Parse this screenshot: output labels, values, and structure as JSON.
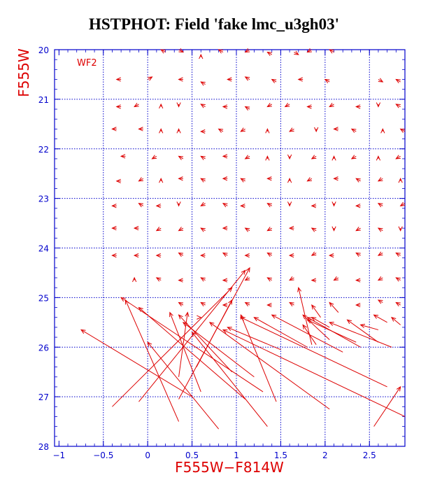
{
  "chart_data": {
    "type": "vector-field",
    "title": "HSTPHOT: Field 'fake lmc_u3gh03'",
    "xlabel": "F555W−F814W",
    "ylabel": "F555W",
    "annotation": "WF2",
    "xlim": [
      -1.05,
      2.9
    ],
    "ylim": [
      28,
      20
    ],
    "x_ticks": [
      -1,
      -0.5,
      0,
      0.5,
      1,
      1.5,
      2,
      2.5
    ],
    "x_tick_labels": [
      "−1",
      "−0.5",
      "0",
      "0.5",
      "1",
      "1.5",
      "2",
      "2.5"
    ],
    "y_ticks": [
      20,
      21,
      22,
      23,
      24,
      25,
      26,
      27,
      28
    ],
    "y_tick_labels": [
      "20",
      "21",
      "22",
      "23",
      "24",
      "25",
      "26",
      "27",
      "28"
    ],
    "grid_x": [
      -0.5,
      0,
      0.5,
      1,
      1.5,
      2,
      2.5
    ],
    "grid_y": [
      21,
      22,
      23,
      24,
      25,
      26,
      27
    ],
    "grid": true,
    "colors": {
      "axes": "#0000cc",
      "grid": "#0000cc",
      "data": "#dd0000",
      "labels": "#dd0000",
      "title": "#000000"
    },
    "arrows": [
      {
        "x0": 0.2,
        "y0": 20.05,
        "x1": 0.15,
        "y1": 20.0
      },
      {
        "x0": 0.35,
        "y0": 20.0,
        "x1": 0.4,
        "y1": 20.05
      },
      {
        "x0": 0.6,
        "y0": 20.15,
        "x1": 0.6,
        "y1": 20.1
      },
      {
        "x0": 0.85,
        "y0": 20.05,
        "x1": 0.8,
        "y1": 20.0
      },
      {
        "x0": 1.15,
        "y0": 20.0,
        "x1": 1.1,
        "y1": 20.05
      },
      {
        "x0": 1.4,
        "y0": 20.1,
        "x1": 1.35,
        "y1": 20.05
      },
      {
        "x0": 1.65,
        "y0": 20.05,
        "x1": 1.7,
        "y1": 20.1
      },
      {
        "x0": 1.85,
        "y0": 20.0,
        "x1": 1.8,
        "y1": 20.05
      },
      {
        "x0": 2.1,
        "y0": 20.05,
        "x1": 2.05,
        "y1": 20.0
      },
      {
        "x0": -0.3,
        "y0": 20.6,
        "x1": -0.35,
        "y1": 20.6
      },
      {
        "x0": 0.0,
        "y0": 20.6,
        "x1": 0.05,
        "y1": 20.55
      },
      {
        "x0": 0.4,
        "y0": 20.6,
        "x1": 0.35,
        "y1": 20.6
      },
      {
        "x0": 0.65,
        "y0": 20.7,
        "x1": 0.6,
        "y1": 20.65
      },
      {
        "x0": 0.95,
        "y0": 20.6,
        "x1": 0.9,
        "y1": 20.6
      },
      {
        "x0": 1.15,
        "y0": 20.6,
        "x1": 1.1,
        "y1": 20.55
      },
      {
        "x0": 1.45,
        "y0": 20.65,
        "x1": 1.4,
        "y1": 20.6
      },
      {
        "x0": 1.75,
        "y0": 20.6,
        "x1": 1.7,
        "y1": 20.6
      },
      {
        "x0": 2.05,
        "y0": 20.65,
        "x1": 2.0,
        "y1": 20.6
      },
      {
        "x0": 2.6,
        "y0": 20.6,
        "x1": 2.65,
        "y1": 20.65
      },
      {
        "x0": 2.85,
        "y0": 20.65,
        "x1": 2.8,
        "y1": 20.6
      },
      {
        "x0": -0.3,
        "y0": 21.15,
        "x1": -0.35,
        "y1": 21.15
      },
      {
        "x0": -0.1,
        "y0": 21.1,
        "x1": -0.15,
        "y1": 21.15
      },
      {
        "x0": 0.15,
        "y0": 21.15,
        "x1": 0.15,
        "y1": 21.1
      },
      {
        "x0": 0.35,
        "y0": 21.1,
        "x1": 0.35,
        "y1": 21.15
      },
      {
        "x0": 0.65,
        "y0": 21.15,
        "x1": 0.6,
        "y1": 21.1
      },
      {
        "x0": 0.9,
        "y0": 21.15,
        "x1": 0.85,
        "y1": 21.15
      },
      {
        "x0": 1.15,
        "y0": 21.2,
        "x1": 1.1,
        "y1": 21.15
      },
      {
        "x0": 1.4,
        "y0": 21.1,
        "x1": 1.35,
        "y1": 21.15
      },
      {
        "x0": 1.6,
        "y0": 21.1,
        "x1": 1.55,
        "y1": 21.15
      },
      {
        "x0": 1.85,
        "y0": 21.15,
        "x1": 1.8,
        "y1": 21.15
      },
      {
        "x0": 2.1,
        "y0": 21.1,
        "x1": 2.05,
        "y1": 21.15
      },
      {
        "x0": 2.4,
        "y0": 21.15,
        "x1": 2.35,
        "y1": 21.15
      },
      {
        "x0": 2.6,
        "y0": 21.1,
        "x1": 2.6,
        "y1": 21.15
      },
      {
        "x0": 2.85,
        "y0": 21.15,
        "x1": 2.8,
        "y1": 21.1
      },
      {
        "x0": -0.35,
        "y0": 21.6,
        "x1": -0.4,
        "y1": 21.6
      },
      {
        "x0": -0.05,
        "y0": 21.6,
        "x1": -0.1,
        "y1": 21.6
      },
      {
        "x0": 0.15,
        "y0": 21.65,
        "x1": 0.15,
        "y1": 21.6
      },
      {
        "x0": 0.35,
        "y0": 21.65,
        "x1": 0.35,
        "y1": 21.6
      },
      {
        "x0": 0.65,
        "y0": 21.65,
        "x1": 0.6,
        "y1": 21.65
      },
      {
        "x0": 0.85,
        "y0": 21.65,
        "x1": 0.8,
        "y1": 21.6
      },
      {
        "x0": 1.1,
        "y0": 21.6,
        "x1": 1.05,
        "y1": 21.65
      },
      {
        "x0": 1.35,
        "y0": 21.65,
        "x1": 1.35,
        "y1": 21.6
      },
      {
        "x0": 1.65,
        "y0": 21.6,
        "x1": 1.6,
        "y1": 21.65
      },
      {
        "x0": 1.9,
        "y0": 21.6,
        "x1": 1.9,
        "y1": 21.65
      },
      {
        "x0": 2.15,
        "y0": 21.6,
        "x1": 2.1,
        "y1": 21.6
      },
      {
        "x0": 2.35,
        "y0": 21.65,
        "x1": 2.3,
        "y1": 21.6
      },
      {
        "x0": 2.65,
        "y0": 21.65,
        "x1": 2.65,
        "y1": 21.6
      },
      {
        "x0": 2.9,
        "y0": 21.65,
        "x1": 2.85,
        "y1": 21.6
      },
      {
        "x0": -0.25,
        "y0": 22.15,
        "x1": -0.3,
        "y1": 22.15
      },
      {
        "x0": 0.1,
        "y0": 22.15,
        "x1": 0.05,
        "y1": 22.2
      },
      {
        "x0": 0.4,
        "y0": 22.2,
        "x1": 0.35,
        "y1": 22.15
      },
      {
        "x0": 0.65,
        "y0": 22.2,
        "x1": 0.6,
        "y1": 22.15
      },
      {
        "x0": 0.9,
        "y0": 22.15,
        "x1": 0.85,
        "y1": 22.15
      },
      {
        "x0": 1.15,
        "y0": 22.15,
        "x1": 1.1,
        "y1": 22.2
      },
      {
        "x0": 1.35,
        "y0": 22.2,
        "x1": 1.35,
        "y1": 22.15
      },
      {
        "x0": 1.6,
        "y0": 22.15,
        "x1": 1.6,
        "y1": 22.2
      },
      {
        "x0": 1.9,
        "y0": 22.15,
        "x1": 1.85,
        "y1": 22.2
      },
      {
        "x0": 2.1,
        "y0": 22.2,
        "x1": 2.1,
        "y1": 22.15
      },
      {
        "x0": 2.35,
        "y0": 22.15,
        "x1": 2.3,
        "y1": 22.2
      },
      {
        "x0": 2.6,
        "y0": 22.2,
        "x1": 2.6,
        "y1": 22.15
      },
      {
        "x0": 2.85,
        "y0": 22.15,
        "x1": 2.8,
        "y1": 22.2
      },
      {
        "x0": -0.3,
        "y0": 22.65,
        "x1": -0.35,
        "y1": 22.65
      },
      {
        "x0": -0.05,
        "y0": 22.6,
        "x1": -0.1,
        "y1": 22.65
      },
      {
        "x0": 0.15,
        "y0": 22.65,
        "x1": 0.15,
        "y1": 22.6
      },
      {
        "x0": 0.4,
        "y0": 22.6,
        "x1": 0.35,
        "y1": 22.6
      },
      {
        "x0": 0.65,
        "y0": 22.65,
        "x1": 0.6,
        "y1": 22.6
      },
      {
        "x0": 0.9,
        "y0": 22.6,
        "x1": 0.85,
        "y1": 22.6
      },
      {
        "x0": 1.1,
        "y0": 22.65,
        "x1": 1.05,
        "y1": 22.6
      },
      {
        "x0": 1.4,
        "y0": 22.6,
        "x1": 1.35,
        "y1": 22.6
      },
      {
        "x0": 1.6,
        "y0": 22.65,
        "x1": 1.6,
        "y1": 22.6
      },
      {
        "x0": 1.85,
        "y0": 22.6,
        "x1": 1.8,
        "y1": 22.65
      },
      {
        "x0": 2.15,
        "y0": 22.6,
        "x1": 2.1,
        "y1": 22.6
      },
      {
        "x0": 2.4,
        "y0": 22.65,
        "x1": 2.35,
        "y1": 22.6
      },
      {
        "x0": 2.65,
        "y0": 22.6,
        "x1": 2.6,
        "y1": 22.65
      },
      {
        "x0": 2.85,
        "y0": 22.65,
        "x1": 2.85,
        "y1": 22.6
      },
      {
        "x0": -0.35,
        "y0": 23.15,
        "x1": -0.4,
        "y1": 23.15
      },
      {
        "x0": -0.05,
        "y0": 23.15,
        "x1": -0.1,
        "y1": 23.1
      },
      {
        "x0": 0.15,
        "y0": 23.15,
        "x1": 0.1,
        "y1": 23.15
      },
      {
        "x0": 0.35,
        "y0": 23.1,
        "x1": 0.35,
        "y1": 23.15
      },
      {
        "x0": 0.65,
        "y0": 23.1,
        "x1": 0.6,
        "y1": 23.15
      },
      {
        "x0": 0.9,
        "y0": 23.15,
        "x1": 0.85,
        "y1": 23.1
      },
      {
        "x0": 1.1,
        "y0": 23.15,
        "x1": 1.05,
        "y1": 23.15
      },
      {
        "x0": 1.4,
        "y0": 23.15,
        "x1": 1.35,
        "y1": 23.1
      },
      {
        "x0": 1.6,
        "y0": 23.1,
        "x1": 1.6,
        "y1": 23.15
      },
      {
        "x0": 1.9,
        "y0": 23.15,
        "x1": 1.85,
        "y1": 23.15
      },
      {
        "x0": 2.1,
        "y0": 23.1,
        "x1": 2.1,
        "y1": 23.15
      },
      {
        "x0": 2.4,
        "y0": 23.15,
        "x1": 2.35,
        "y1": 23.15
      },
      {
        "x0": 2.65,
        "y0": 23.15,
        "x1": 2.6,
        "y1": 23.1
      },
      {
        "x0": 2.9,
        "y0": 23.1,
        "x1": 2.85,
        "y1": 23.15
      },
      {
        "x0": -0.35,
        "y0": 23.6,
        "x1": -0.4,
        "y1": 23.6
      },
      {
        "x0": -0.1,
        "y0": 23.6,
        "x1": -0.15,
        "y1": 23.6
      },
      {
        "x0": 0.15,
        "y0": 23.6,
        "x1": 0.1,
        "y1": 23.65
      },
      {
        "x0": 0.4,
        "y0": 23.6,
        "x1": 0.35,
        "y1": 23.65
      },
      {
        "x0": 0.65,
        "y0": 23.65,
        "x1": 0.6,
        "y1": 23.6
      },
      {
        "x0": 0.9,
        "y0": 23.6,
        "x1": 0.85,
        "y1": 23.6
      },
      {
        "x0": 1.15,
        "y0": 23.65,
        "x1": 1.1,
        "y1": 23.6
      },
      {
        "x0": 1.4,
        "y0": 23.6,
        "x1": 1.35,
        "y1": 23.65
      },
      {
        "x0": 1.65,
        "y0": 23.6,
        "x1": 1.6,
        "y1": 23.6
      },
      {
        "x0": 1.9,
        "y0": 23.65,
        "x1": 1.85,
        "y1": 23.6
      },
      {
        "x0": 2.1,
        "y0": 23.6,
        "x1": 2.1,
        "y1": 23.65
      },
      {
        "x0": 2.4,
        "y0": 23.6,
        "x1": 2.35,
        "y1": 23.65
      },
      {
        "x0": 2.65,
        "y0": 23.65,
        "x1": 2.6,
        "y1": 23.6
      },
      {
        "x0": 2.85,
        "y0": 23.6,
        "x1": 2.85,
        "y1": 23.65
      },
      {
        "x0": -0.35,
        "y0": 24.15,
        "x1": -0.4,
        "y1": 24.15
      },
      {
        "x0": -0.1,
        "y0": 24.15,
        "x1": -0.15,
        "y1": 24.15
      },
      {
        "x0": 0.15,
        "y0": 24.15,
        "x1": 0.1,
        "y1": 24.15
      },
      {
        "x0": 0.4,
        "y0": 24.15,
        "x1": 0.35,
        "y1": 24.1
      },
      {
        "x0": 0.65,
        "y0": 24.15,
        "x1": 0.6,
        "y1": 24.15
      },
      {
        "x0": 0.9,
        "y0": 24.15,
        "x1": 0.85,
        "y1": 24.1
      },
      {
        "x0": 1.15,
        "y0": 24.15,
        "x1": 1.1,
        "y1": 24.15
      },
      {
        "x0": 1.4,
        "y0": 24.15,
        "x1": 1.35,
        "y1": 24.1
      },
      {
        "x0": 1.65,
        "y0": 24.15,
        "x1": 1.6,
        "y1": 24.15
      },
      {
        "x0": 1.9,
        "y0": 24.1,
        "x1": 1.85,
        "y1": 24.15
      },
      {
        "x0": 2.1,
        "y0": 24.15,
        "x1": 2.05,
        "y1": 24.15
      },
      {
        "x0": 2.4,
        "y0": 24.15,
        "x1": 2.35,
        "y1": 24.1
      },
      {
        "x0": 2.65,
        "y0": 24.1,
        "x1": 2.6,
        "y1": 24.15
      },
      {
        "x0": 2.85,
        "y0": 24.15,
        "x1": 2.8,
        "y1": 24.1
      },
      {
        "x0": -0.15,
        "y0": 24.65,
        "x1": -0.15,
        "y1": 24.6
      },
      {
        "x0": 0.15,
        "y0": 24.65,
        "x1": 0.1,
        "y1": 24.6
      },
      {
        "x0": 0.4,
        "y0": 24.65,
        "x1": 0.35,
        "y1": 24.65
      },
      {
        "x0": 0.65,
        "y0": 24.65,
        "x1": 0.6,
        "y1": 24.6
      },
      {
        "x0": 0.9,
        "y0": 24.65,
        "x1": 0.85,
        "y1": 24.65
      },
      {
        "x0": 1.15,
        "y0": 24.6,
        "x1": 1.1,
        "y1": 24.65
      },
      {
        "x0": 1.4,
        "y0": 24.65,
        "x1": 1.35,
        "y1": 24.6
      },
      {
        "x0": 1.65,
        "y0": 24.6,
        "x1": 1.6,
        "y1": 24.65
      },
      {
        "x0": 1.9,
        "y0": 24.65,
        "x1": 1.85,
        "y1": 24.65
      },
      {
        "x0": 2.15,
        "y0": 24.6,
        "x1": 2.1,
        "y1": 24.65
      },
      {
        "x0": 2.4,
        "y0": 24.65,
        "x1": 2.35,
        "y1": 24.65
      },
      {
        "x0": 2.65,
        "y0": 24.6,
        "x1": 2.6,
        "y1": 24.65
      },
      {
        "x0": 2.85,
        "y0": 24.65,
        "x1": 2.8,
        "y1": 24.6
      },
      {
        "x0": 0.4,
        "y0": 25.15,
        "x1": 0.35,
        "y1": 25.1
      },
      {
        "x0": 0.65,
        "y0": 25.15,
        "x1": 0.6,
        "y1": 25.1
      },
      {
        "x0": 0.9,
        "y0": 25.15,
        "x1": 0.85,
        "y1": 25.15
      },
      {
        "x0": 1.15,
        "y0": 25.15,
        "x1": 1.1,
        "y1": 25.1
      },
      {
        "x0": 1.4,
        "y0": 25.15,
        "x1": 1.35,
        "y1": 25.15
      },
      {
        "x0": 1.65,
        "y0": 25.15,
        "x1": 1.6,
        "y1": 25.1
      },
      {
        "x0": 2.4,
        "y0": 25.15,
        "x1": 2.35,
        "y1": 25.15
      },
      {
        "x0": 2.65,
        "y0": 25.1,
        "x1": 2.6,
        "y1": 25.05
      },
      {
        "x0": 2.85,
        "y0": 25.15,
        "x1": 2.8,
        "y1": 25.1
      },
      {
        "x0": 1.85,
        "y0": 25.95,
        "x1": 1.7,
        "y1": 24.8
      },
      {
        "x0": 0.55,
        "y0": 26.4,
        "x1": 0.95,
        "y1": 25.05
      },
      {
        "x0": 0.35,
        "y0": 26.6,
        "x1": 0.45,
        "y1": 25.3
      },
      {
        "x0": 0.6,
        "y0": 26.9,
        "x1": 0.25,
        "y1": 25.3
      },
      {
        "x0": 0.35,
        "y0": 27.05,
        "x1": 1.15,
        "y1": 24.4
      },
      {
        "x0": -0.1,
        "y0": 27.1,
        "x1": 1.1,
        "y1": 24.45
      },
      {
        "x0": -0.4,
        "y0": 27.2,
        "x1": 0.95,
        "y1": 24.8
      },
      {
        "x0": 0.6,
        "y0": 25.4,
        "x1": 0.6,
        "y1": 25.4
      },
      {
        "x0": 1.3,
        "y0": 26.9,
        "x1": -0.3,
        "y1": 25.0
      },
      {
        "x0": 1.1,
        "y0": 27.05,
        "x1": -0.1,
        "y1": 25.2
      },
      {
        "x0": 0.35,
        "y0": 27.5,
        "x1": -0.25,
        "y1": 25.05
      },
      {
        "x0": 0.8,
        "y0": 27.65,
        "x1": 0.0,
        "y1": 25.9
      },
      {
        "x0": 1.35,
        "y0": 27.6,
        "x1": 0.5,
        "y1": 25.7
      },
      {
        "x0": 1.45,
        "y0": 27.1,
        "x1": 1.05,
        "y1": 25.35
      },
      {
        "x0": 0.5,
        "y0": 27.0,
        "x1": -0.75,
        "y1": 25.65
      },
      {
        "x0": 0.95,
        "y0": 26.5,
        "x1": 0.35,
        "y1": 25.35
      },
      {
        "x0": 1.2,
        "y0": 26.6,
        "x1": 0.4,
        "y1": 25.5
      },
      {
        "x0": 1.5,
        "y0": 26.05,
        "x1": 0.9,
        "y1": 25.6
      },
      {
        "x0": 2.05,
        "y0": 27.25,
        "x1": 0.7,
        "y1": 25.5
      },
      {
        "x0": 2.7,
        "y0": 26.8,
        "x1": 1.05,
        "y1": 25.4
      },
      {
        "x0": 2.9,
        "y0": 27.4,
        "x1": 0.85,
        "y1": 25.65
      },
      {
        "x0": 1.8,
        "y0": 26.0,
        "x1": 1.2,
        "y1": 25.4
      },
      {
        "x0": 2.2,
        "y0": 26.1,
        "x1": 1.4,
        "y1": 25.35
      },
      {
        "x0": 2.4,
        "y0": 26.0,
        "x1": 1.8,
        "y1": 25.4
      },
      {
        "x0": 2.75,
        "y0": 26.0,
        "x1": 2.05,
        "y1": 25.5
      },
      {
        "x0": 2.6,
        "y0": 25.9,
        "x1": 2.25,
        "y1": 25.45
      },
      {
        "x0": 2.55,
        "y0": 27.6,
        "x1": 2.85,
        "y1": 26.8
      },
      {
        "x0": 2.35,
        "y0": 25.9,
        "x1": 1.8,
        "y1": 25.45
      },
      {
        "x0": 2.05,
        "y0": 25.85,
        "x1": 1.75,
        "y1": 25.35
      },
      {
        "x0": 2.85,
        "y0": 25.55,
        "x1": 2.75,
        "y1": 25.4
      },
      {
        "x0": 2.7,
        "y0": 25.5,
        "x1": 2.55,
        "y1": 25.35
      },
      {
        "x0": 2.6,
        "y0": 25.65,
        "x1": 2.4,
        "y1": 25.55
      },
      {
        "x0": 2.05,
        "y0": 25.6,
        "x1": 1.85,
        "y1": 25.4
      },
      {
        "x0": 1.9,
        "y0": 25.95,
        "x1": 1.75,
        "y1": 25.55
      },
      {
        "x0": 1.95,
        "y0": 25.4,
        "x1": 1.85,
        "y1": 25.15
      },
      {
        "x0": 2.15,
        "y0": 25.3,
        "x1": 2.05,
        "y1": 25.1
      }
    ]
  }
}
